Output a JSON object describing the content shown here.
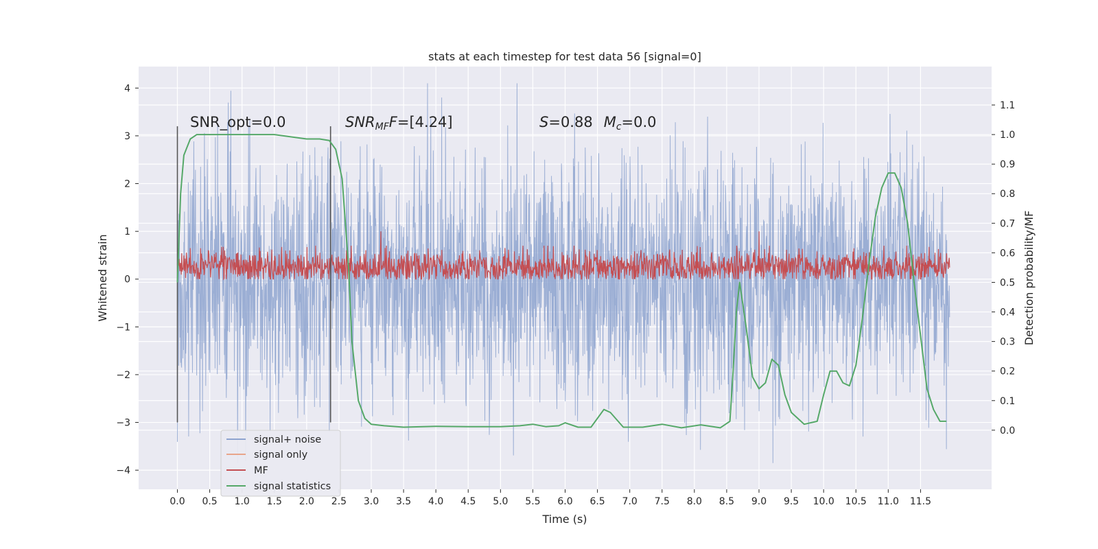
{
  "chart_data": {
    "type": "line",
    "title": "stats at each timestep for test data 56 [signal=0]",
    "xlabel": "Time (s)",
    "ylabel": "Whitened strain",
    "y2label": "Detection probability/MF",
    "xlim": [
      -0.6,
      12.6
    ],
    "ylim": [
      -4.4,
      4.45
    ],
    "y2lim": [
      -0.2,
      1.23
    ],
    "x_ticks": [
      "0.0",
      "0.5",
      "1.0",
      "1.5",
      "2.0",
      "2.5",
      "3.0",
      "3.5",
      "4.0",
      "4.5",
      "5.0",
      "5.5",
      "6.0",
      "6.5",
      "7.0",
      "7.5",
      "8.0",
      "8.5",
      "9.0",
      "9.5",
      "10.0",
      "10.5",
      "11.0",
      "11.5"
    ],
    "y_ticks": [
      "4",
      "3",
      "2",
      "1",
      "0",
      "−1",
      "−2",
      "−3",
      "−4"
    ],
    "y_tick_values": [
      4,
      3,
      2,
      1,
      0,
      -1,
      -2,
      -3,
      -4
    ],
    "y2_ticks": [
      "1.1",
      "1.0",
      "0.9",
      "0.8",
      "0.7",
      "0.6",
      "0.5",
      "0.4",
      "0.3",
      "0.2",
      "0.1",
      "0.0"
    ],
    "y2_tick_values": [
      1.1,
      1.0,
      0.9,
      0.8,
      0.7,
      0.6,
      0.5,
      0.4,
      0.3,
      0.2,
      0.1,
      0.0
    ],
    "annotations": {
      "snr_opt": "SNR_opt=0.0",
      "snr_mf_base": "SNR",
      "snr_mf_sub": "MF",
      "snr_mf_value": "=[4.24]",
      "s_var": "S",
      "s_value": "=0.88",
      "mc_var": "M",
      "mc_sub": "c",
      "mc_value": "=0.0"
    },
    "window_markers_x": [
      0.0,
      2.37
    ],
    "window_markers_yrange": [
      -3.0,
      3.2
    ],
    "legend": {
      "placement": "lower-left",
      "entries": [
        {
          "label": "signal+ noise",
          "color": "#8da3cf"
        },
        {
          "label": "signal only",
          "color": "#e8a58a"
        },
        {
          "label": "MF",
          "color": "#c44e52"
        },
        {
          "label": "signal statistics",
          "color": "#55a868"
        }
      ]
    },
    "series": [
      {
        "name": "signal+ noise",
        "color": "#8da3cf",
        "axis": "left",
        "x_range": [
          0.0,
          11.95
        ],
        "amplitude_typical": 1.3,
        "amplitude_max": [
          -3.85,
          4.1
        ]
      },
      {
        "name": "MF",
        "color": "#c44e52",
        "axis": "left",
        "x_range": [
          0.0,
          11.95
        ],
        "center": 0.25,
        "band": [
          0.0,
          0.7
        ],
        "spikes": [
          [
            3.15,
            1.0
          ],
          [
            9.0,
            1.0
          ],
          [
            0.2,
            0.65
          ]
        ]
      },
      {
        "name": "signal statistics",
        "color": "#55a868",
        "axis": "right",
        "x": [
          0.0,
          0.05,
          0.1,
          0.2,
          0.3,
          0.5,
          1.0,
          1.5,
          2.0,
          2.2,
          2.35,
          2.45,
          2.55,
          2.6,
          2.65,
          2.7,
          2.8,
          2.9,
          3.0,
          3.2,
          3.5,
          4.0,
          4.5,
          5.0,
          5.3,
          5.5,
          5.7,
          5.9,
          6.0,
          6.2,
          6.4,
          6.6,
          6.7,
          6.9,
          7.2,
          7.5,
          7.8,
          8.1,
          8.4,
          8.55,
          8.6,
          8.65,
          8.7,
          8.8,
          8.9,
          9.0,
          9.1,
          9.2,
          9.3,
          9.4,
          9.5,
          9.7,
          9.9,
          10.0,
          10.1,
          10.2,
          10.3,
          10.4,
          10.5,
          10.6,
          10.7,
          10.8,
          10.9,
          11.0,
          11.1,
          11.2,
          11.3,
          11.4,
          11.5,
          11.6,
          11.7,
          11.8,
          11.9
        ],
        "y": [
          0.5,
          0.8,
          0.93,
          0.985,
          1.0,
          1.0,
          1.0,
          1.0,
          0.985,
          0.985,
          0.98,
          0.95,
          0.85,
          0.7,
          0.55,
          0.3,
          0.1,
          0.04,
          0.02,
          0.015,
          0.01,
          0.013,
          0.012,
          0.012,
          0.015,
          0.02,
          0.012,
          0.015,
          0.025,
          0.01,
          0.01,
          0.07,
          0.06,
          0.01,
          0.01,
          0.02,
          0.008,
          0.018,
          0.008,
          0.03,
          0.2,
          0.4,
          0.5,
          0.35,
          0.18,
          0.14,
          0.16,
          0.24,
          0.22,
          0.12,
          0.06,
          0.02,
          0.03,
          0.12,
          0.2,
          0.2,
          0.16,
          0.15,
          0.22,
          0.38,
          0.56,
          0.72,
          0.82,
          0.87,
          0.87,
          0.82,
          0.7,
          0.5,
          0.32,
          0.14,
          0.07,
          0.03,
          0.03
        ]
      }
    ]
  }
}
